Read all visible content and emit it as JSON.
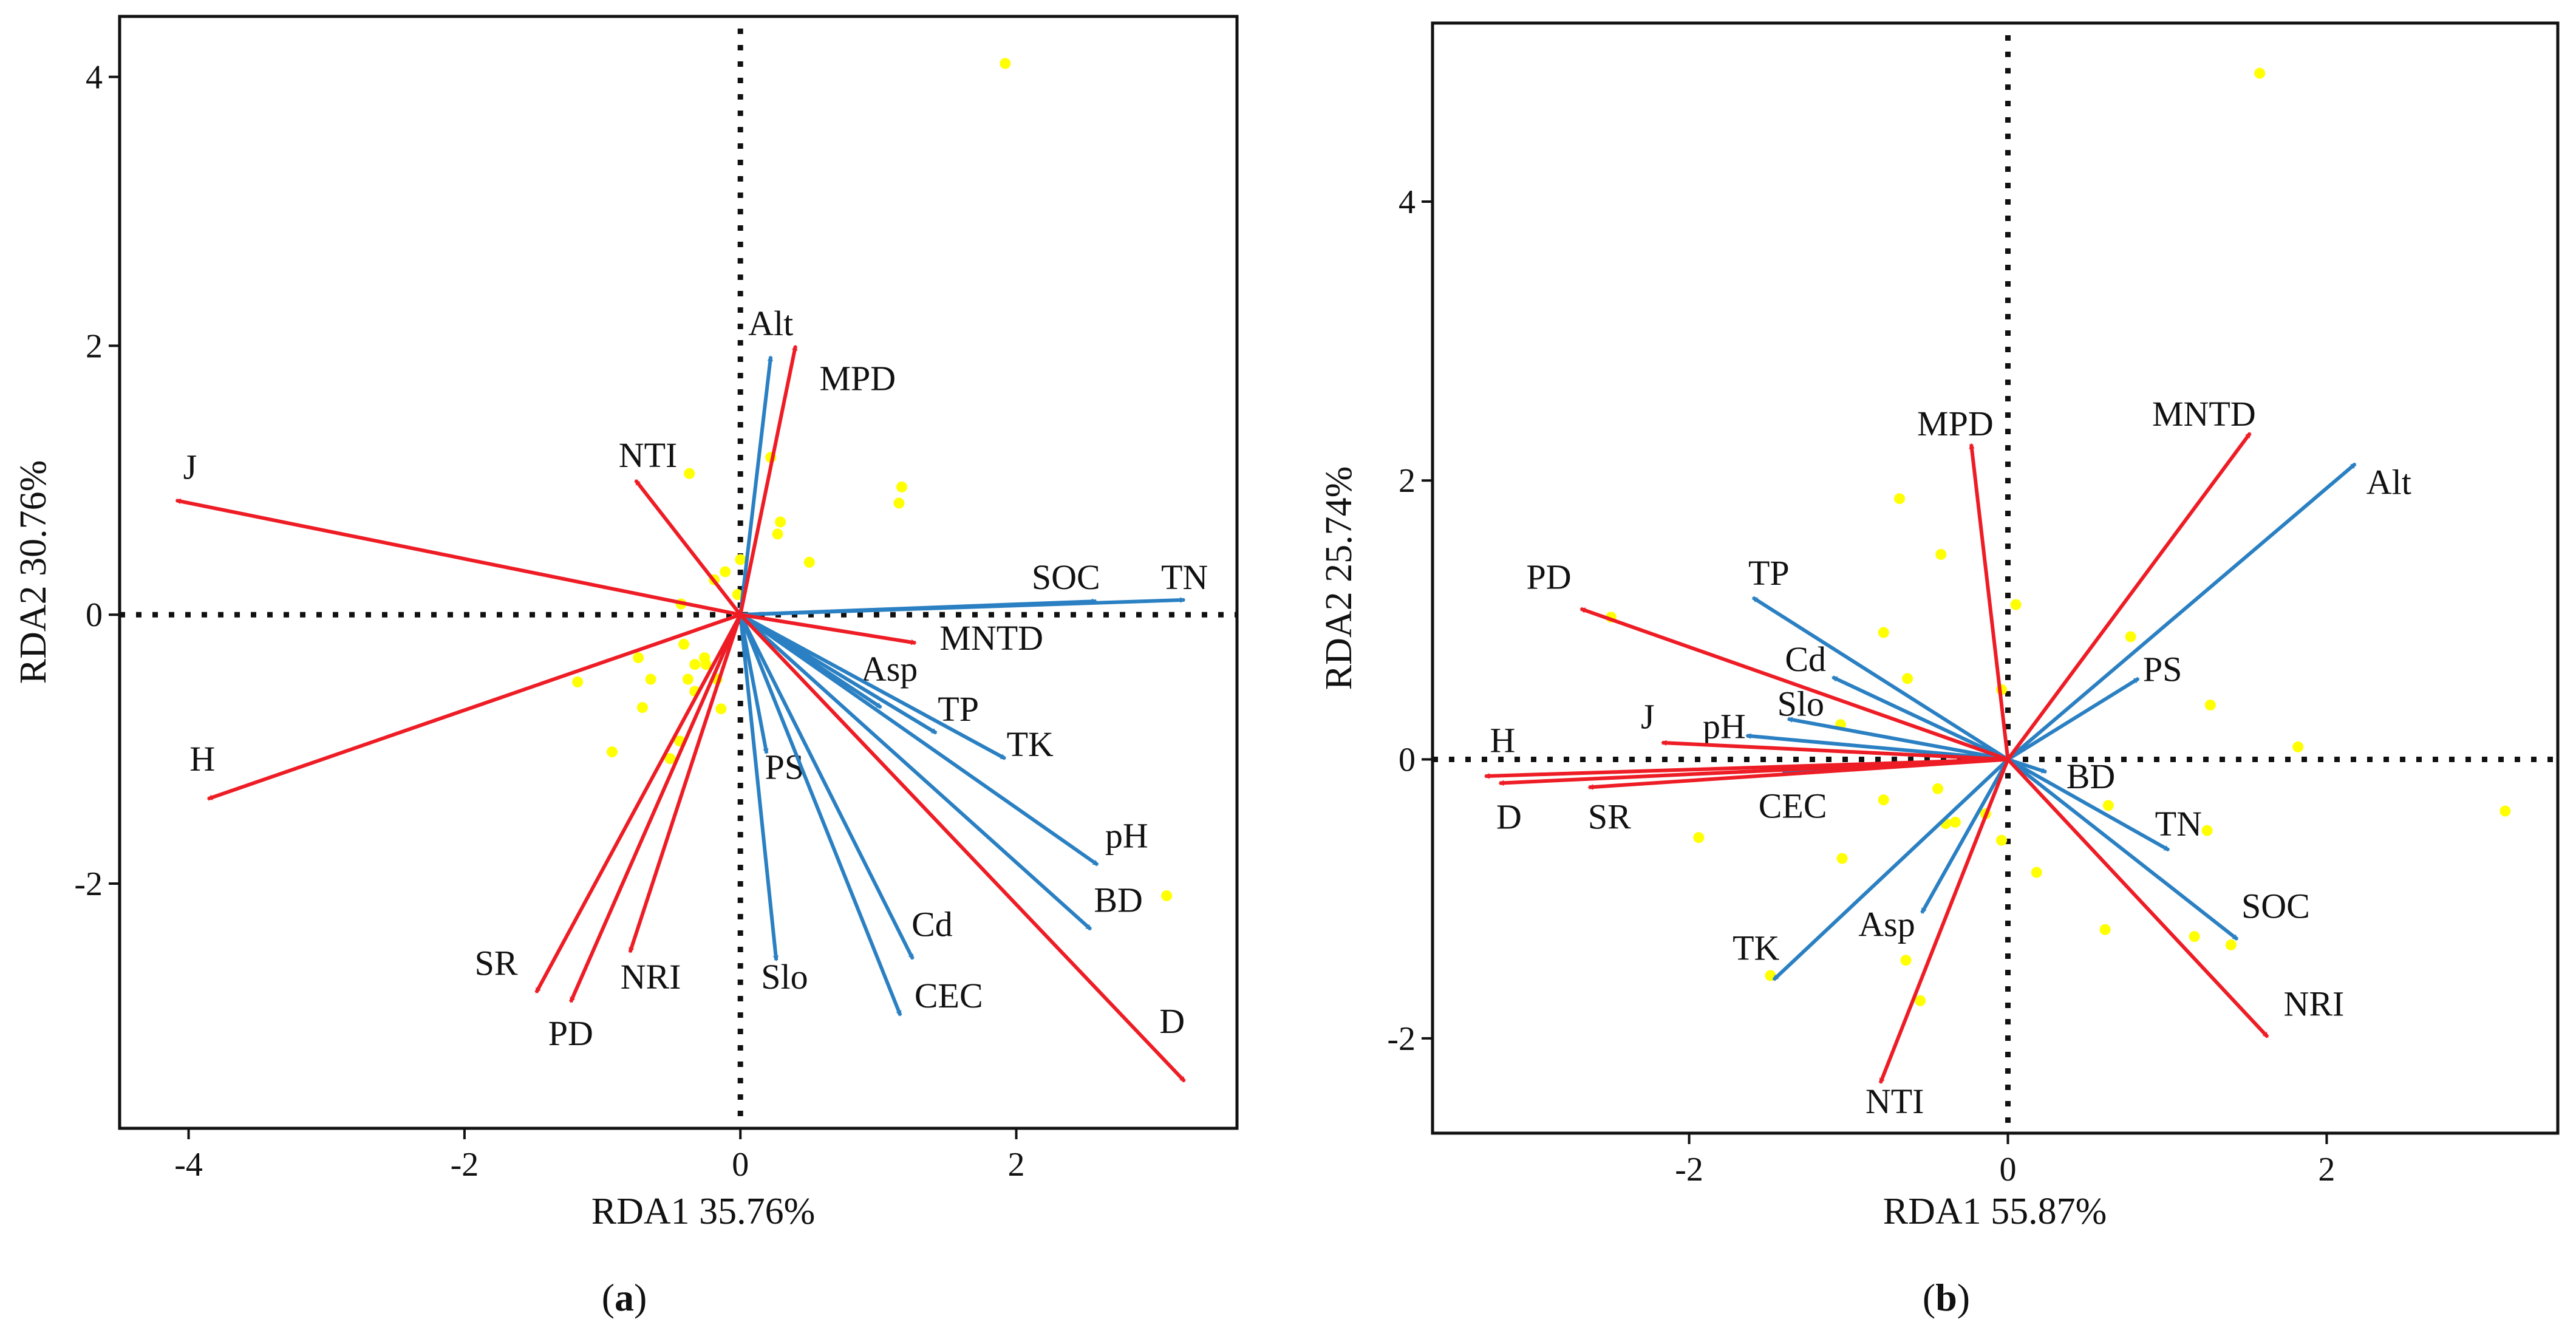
{
  "colors": {
    "response": "#ee1c25",
    "environment": "#2a80c2",
    "sites": "#ffff00",
    "axis": "#111111"
  },
  "chart_data": [
    {
      "type": "scatter",
      "subtype": "rda-biplot",
      "caption_letter": "a",
      "caption_open": "(",
      "caption_close": ")",
      "xlabel": "RDA1 35.76%",
      "ylabel": "RDA2 30.76%",
      "xlim": [
        -4.5,
        3.6
      ],
      "ylim": [
        -3.82,
        4.45
      ],
      "xticks": [
        -4,
        -2,
        0,
        2
      ],
      "yticks": [
        -2,
        0,
        2,
        4
      ],
      "grid": false,
      "reference_lines": "dotted at x=0 and y=0",
      "response_arrows": [
        {
          "name": "J",
          "x": -4.09,
          "y": 0.85
        },
        {
          "name": "H",
          "x": -3.86,
          "y": -1.37
        },
        {
          "name": "NTI",
          "x": -0.76,
          "y": 1.0
        },
        {
          "name": "MPD",
          "x": 0.4,
          "y": 2.0
        },
        {
          "name": "MNTD",
          "x": 1.27,
          "y": -0.21
        },
        {
          "name": "D",
          "x": 3.22,
          "y": -3.47
        },
        {
          "name": "SR",
          "x": -1.48,
          "y": -2.81
        },
        {
          "name": "PD",
          "x": -1.23,
          "y": -2.88
        },
        {
          "name": "NRI",
          "x": -0.8,
          "y": -2.51
        }
      ],
      "environment_arrows": [
        {
          "name": "Alt",
          "x": 0.22,
          "y": 1.92
        },
        {
          "name": "SOC",
          "x": 2.58,
          "y": 0.1
        },
        {
          "name": "TN",
          "x": 3.22,
          "y": 0.11
        },
        {
          "name": "Asp",
          "x": 1.02,
          "y": -0.69
        },
        {
          "name": "TP",
          "x": 1.42,
          "y": -0.88
        },
        {
          "name": "TK",
          "x": 1.92,
          "y": -1.07
        },
        {
          "name": "pH",
          "x": 2.59,
          "y": -1.86
        },
        {
          "name": "BD",
          "x": 2.54,
          "y": -2.34
        },
        {
          "name": "PS",
          "x": 0.19,
          "y": -1.03
        },
        {
          "name": "Slo",
          "x": 0.26,
          "y": -2.57
        },
        {
          "name": "Cd",
          "x": 1.25,
          "y": -2.56
        },
        {
          "name": "CEC",
          "x": 1.16,
          "y": -2.98
        }
      ],
      "sites": [
        [
          1.92,
          4.1
        ],
        [
          -0.37,
          1.05
        ],
        [
          0.22,
          1.17
        ],
        [
          1.17,
          0.95
        ],
        [
          1.15,
          0.83
        ],
        [
          0.29,
          0.69
        ],
        [
          0.27,
          0.6
        ],
        [
          0.5,
          0.39
        ],
        [
          -0.11,
          0.32
        ],
        [
          -0.19,
          0.26
        ],
        [
          0.0,
          0.41
        ],
        [
          -0.02,
          0.15
        ],
        [
          -0.43,
          0.08
        ],
        [
          -0.41,
          -0.22
        ],
        [
          -0.74,
          -0.32
        ],
        [
          -1.18,
          -0.5
        ],
        [
          -0.65,
          -0.48
        ],
        [
          -0.33,
          -0.37
        ],
        [
          -0.26,
          -0.32
        ],
        [
          -0.25,
          -0.37
        ],
        [
          -0.38,
          -0.48
        ],
        [
          -0.33,
          -0.57
        ],
        [
          -0.17,
          -0.48
        ],
        [
          -0.71,
          -0.69
        ],
        [
          -0.14,
          -0.7
        ],
        [
          -0.93,
          -1.02
        ],
        [
          -0.51,
          -1.07
        ],
        [
          -0.44,
          -0.94
        ],
        [
          3.09,
          -2.09
        ]
      ]
    },
    {
      "type": "scatter",
      "subtype": "rda-biplot",
      "caption_letter": "b",
      "caption_open": "(",
      "caption_close": ")",
      "xlabel": "RDA1 55.87%",
      "ylabel": "RDA2 25.74%",
      "xlim": [
        -3.61,
        3.45
      ],
      "ylim": [
        -2.68,
        5.28
      ],
      "xticks": [
        -2,
        0,
        2
      ],
      "yticks": [
        -2,
        0,
        2,
        4
      ],
      "grid": false,
      "reference_lines": "dotted at x=0 and y=0",
      "response_arrows": [
        {
          "name": "MPD",
          "x": -0.23,
          "y": 2.26
        },
        {
          "name": "MNTD",
          "x": 1.52,
          "y": 2.34
        },
        {
          "name": "PD",
          "x": -2.68,
          "y": 1.08
        },
        {
          "name": "J",
          "x": -2.17,
          "y": 0.12
        },
        {
          "name": "H",
          "x": -3.28,
          "y": -0.12
        },
        {
          "name": "D",
          "x": -3.19,
          "y": -0.17
        },
        {
          "name": "SR",
          "x": -2.63,
          "y": -0.2
        },
        {
          "name": "NRI",
          "x": 1.63,
          "y": -1.99
        },
        {
          "name": "NTI",
          "x": -0.8,
          "y": -2.32
        }
      ],
      "environment_arrows": [
        {
          "name": "Alt",
          "x": 2.18,
          "y": 2.12
        },
        {
          "name": "PS",
          "x": 0.82,
          "y": 0.58
        },
        {
          "name": "TP",
          "x": -1.6,
          "y": 1.16
        },
        {
          "name": "Cd",
          "x": -1.1,
          "y": 0.59
        },
        {
          "name": "Slo",
          "x": -1.38,
          "y": 0.29
        },
        {
          "name": "pH",
          "x": -1.64,
          "y": 0.17
        },
        {
          "name": "CEC",
          "x": -1.41,
          "y": -0.09
        },
        {
          "name": "BD",
          "x": 0.24,
          "y": -0.09
        },
        {
          "name": "TN",
          "x": 1.01,
          "y": -0.65
        },
        {
          "name": "SOC",
          "x": 1.44,
          "y": -1.29
        },
        {
          "name": "Asp",
          "x": -0.54,
          "y": -1.1
        },
        {
          "name": "TK",
          "x": -1.47,
          "y": -1.58
        }
      ],
      "sites": [
        [
          1.58,
          4.92
        ],
        [
          -0.68,
          1.87
        ],
        [
          -0.42,
          1.47
        ],
        [
          0.05,
          1.11
        ],
        [
          -2.49,
          1.02
        ],
        [
          -0.78,
          0.91
        ],
        [
          0.77,
          0.88
        ],
        [
          -0.63,
          0.58
        ],
        [
          1.27,
          0.39
        ],
        [
          -0.04,
          0.5
        ],
        [
          -1.05,
          0.25
        ],
        [
          1.82,
          0.09
        ],
        [
          3.12,
          -0.37
        ],
        [
          0.63,
          -0.33
        ],
        [
          1.25,
          -0.51
        ],
        [
          -0.78,
          -0.29
        ],
        [
          -0.44,
          -0.21
        ],
        [
          -0.39,
          -0.46
        ],
        [
          -0.33,
          -0.45
        ],
        [
          -0.14,
          -0.39
        ],
        [
          -0.04,
          -0.58
        ],
        [
          -1.94,
          -0.56
        ],
        [
          -1.04,
          -0.71
        ],
        [
          0.18,
          -0.81
        ],
        [
          0.61,
          -1.22
        ],
        [
          1.17,
          -1.27
        ],
        [
          1.4,
          -1.33
        ],
        [
          -0.64,
          -1.44
        ],
        [
          -1.49,
          -1.55
        ],
        [
          -0.55,
          -1.73
        ]
      ]
    }
  ]
}
